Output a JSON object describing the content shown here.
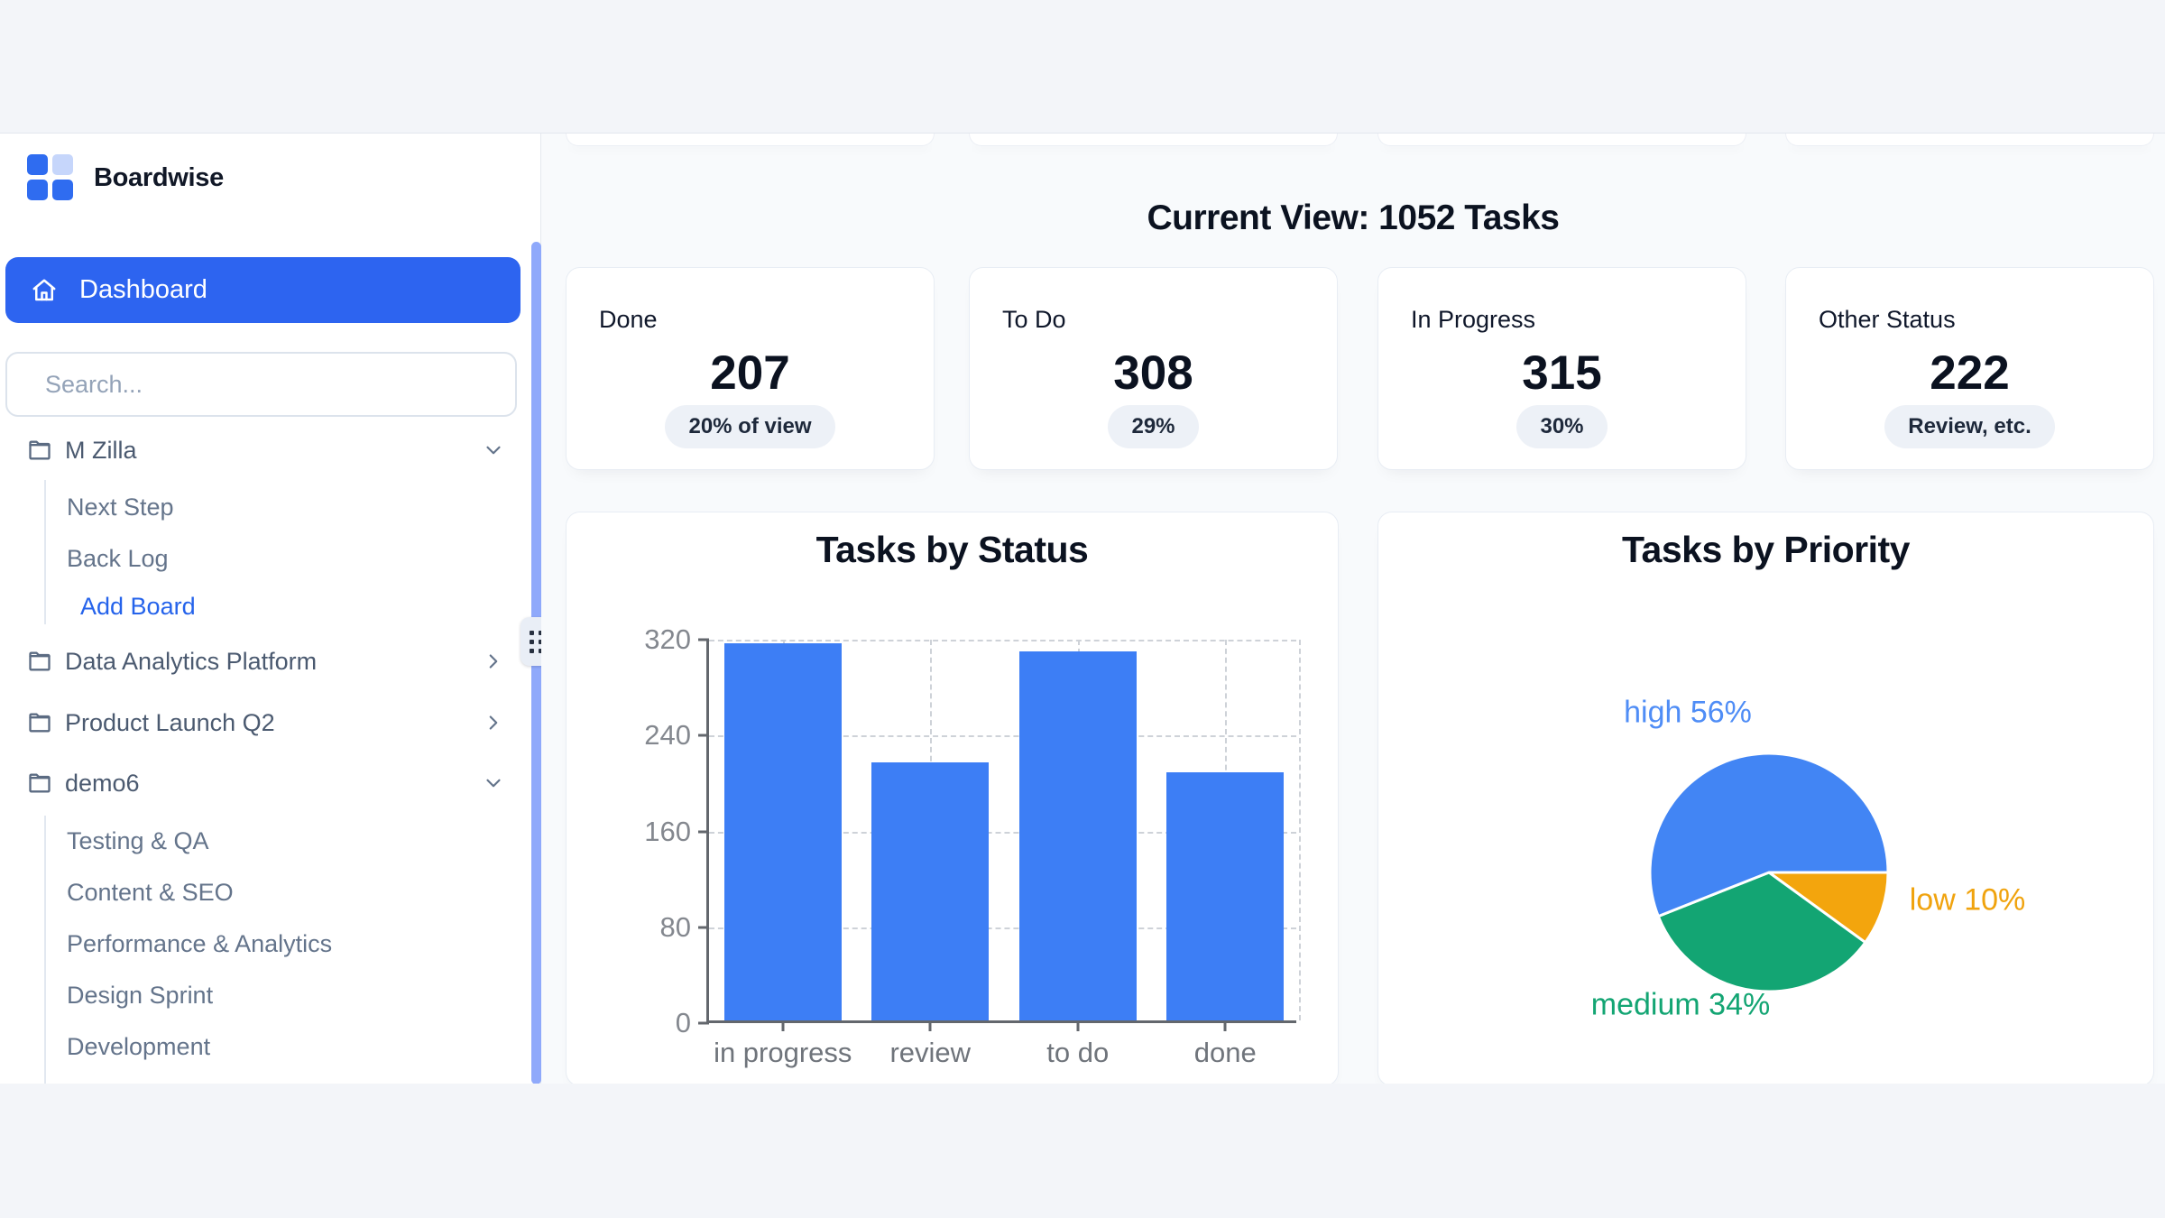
{
  "app": {
    "brand": "Boardwise"
  },
  "sidebar": {
    "dashboard_label": "Dashboard",
    "search": {
      "placeholder": "Search..."
    },
    "sections": [
      {
        "label": "M Zilla",
        "expanded": true,
        "items": [
          "Next Step",
          "Back Log"
        ],
        "action": "Add Board"
      },
      {
        "label": "Data Analytics Platform",
        "expanded": false
      },
      {
        "label": "Product Launch Q2",
        "expanded": false
      },
      {
        "label": "demo6",
        "expanded": true,
        "items": [
          "Testing & QA",
          "Content & SEO",
          "Performance & Analytics",
          "Design Sprint",
          "Development"
        ]
      }
    ]
  },
  "main": {
    "heading": "Current View: 1052 Tasks",
    "stat_cards": [
      {
        "label": "Done",
        "value": "207",
        "badge": "20% of view"
      },
      {
        "label": "To Do",
        "value": "308",
        "badge": "29%"
      },
      {
        "label": "In Progress",
        "value": "315",
        "badge": "30%"
      },
      {
        "label": "Other Status",
        "value": "222",
        "badge": "Review, etc."
      }
    ]
  },
  "chart_data": [
    {
      "type": "bar",
      "title": "Tasks by Status",
      "categories": [
        "in progress",
        "review",
        "to do",
        "done"
      ],
      "values": [
        315,
        215,
        308,
        207
      ],
      "xlabel": "",
      "ylabel": "",
      "ylim": [
        0,
        320
      ],
      "yticks": [
        0,
        80,
        160,
        240,
        320
      ],
      "grid": "dashed",
      "legend": "none",
      "bar_color": "#3d7ef5"
    },
    {
      "type": "pie",
      "title": "Tasks by Priority",
      "segments": [
        {
          "label": "high",
          "pct": 56,
          "color": "#4285f4",
          "label_color": "#4f8df6"
        },
        {
          "label": "medium",
          "pct": 34,
          "color": "#13a573",
          "label_color": "#13a573"
        },
        {
          "label": "low",
          "pct": 10,
          "color": "#f3a50d",
          "label_color": "#f0a30e"
        }
      ],
      "legend": "outside-labels"
    }
  ],
  "colors": {
    "primary_blue": "#2d64f0",
    "bar_blue": "#3d7ef5",
    "pie_blue": "#4285f4",
    "pie_green": "#13a573",
    "pie_orange": "#f3a50d",
    "sidebar_scrollbar": "#8fa9fb",
    "main_bg": "#f8fafc",
    "page_band": "#f3f5f9"
  }
}
